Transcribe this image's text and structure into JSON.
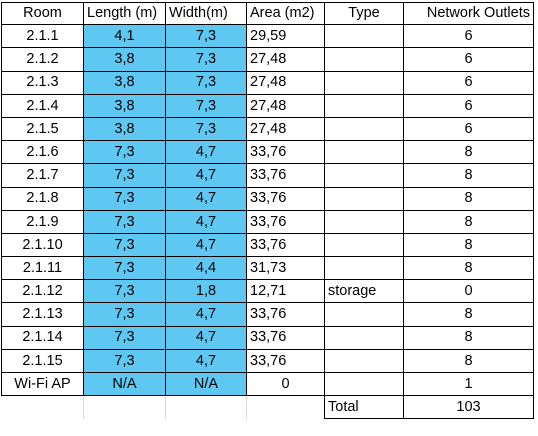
{
  "headers": [
    "Room",
    "Length (m)",
    "Width(m)",
    "Area (m2)",
    "Type",
    "Network Outlets"
  ],
  "rows": [
    {
      "room": "2.1.1",
      "length": "4,1",
      "width": "7,3",
      "area": "29,59",
      "type": "",
      "outlets": "6"
    },
    {
      "room": "2.1.2",
      "length": "3,8",
      "width": "7,3",
      "area": "27,48",
      "type": "",
      "outlets": "6"
    },
    {
      "room": "2.1.3",
      "length": "3,8",
      "width": "7,3",
      "area": "27,48",
      "type": "",
      "outlets": "6"
    },
    {
      "room": "2.1.4",
      "length": "3,8",
      "width": "7,3",
      "area": "27,48",
      "type": "",
      "outlets": "6"
    },
    {
      "room": "2.1.5",
      "length": "3,8",
      "width": "7,3",
      "area": "27,48",
      "type": "",
      "outlets": "6"
    },
    {
      "room": "2.1.6",
      "length": "7,3",
      "width": "4,7",
      "area": "33,76",
      "type": "",
      "outlets": "8"
    },
    {
      "room": "2.1.7",
      "length": "7,3",
      "width": "4,7",
      "area": "33,76",
      "type": "",
      "outlets": "8"
    },
    {
      "room": "2.1.8",
      "length": "7,3",
      "width": "4,7",
      "area": "33,76",
      "type": "",
      "outlets": "8"
    },
    {
      "room": "2.1.9",
      "length": "7,3",
      "width": "4,7",
      "area": "33,76",
      "type": "",
      "outlets": "8"
    },
    {
      "room": "2.1.10",
      "length": "7,3",
      "width": "4,7",
      "area": "33,76",
      "type": "",
      "outlets": "8"
    },
    {
      "room": "2.1.11",
      "length": "7,3",
      "width": "4,4",
      "area": "31,73",
      "type": "",
      "outlets": "8"
    },
    {
      "room": "2.1.12",
      "length": "7,3",
      "width": "1,8",
      "area": "12,71",
      "type": "storage",
      "outlets": "0"
    },
    {
      "room": "2.1.13",
      "length": "7,3",
      "width": "4,7",
      "area": "33,76",
      "type": "",
      "outlets": "8"
    },
    {
      "room": "2.1.14",
      "length": "7,3",
      "width": "4,7",
      "area": "33,76",
      "type": "",
      "outlets": "8"
    },
    {
      "room": "2.1.15",
      "length": "7,3",
      "width": "4,7",
      "area": "33,76",
      "type": "",
      "outlets": "8"
    },
    {
      "room": "Wi-Fi AP",
      "length": "N/A",
      "width": "N/A",
      "area": "0",
      "type": "",
      "outlets": "1"
    }
  ],
  "total": {
    "label": "Total",
    "value": "103"
  },
  "colors": {
    "highlight": "#5ec8f2",
    "border": "#000000"
  }
}
